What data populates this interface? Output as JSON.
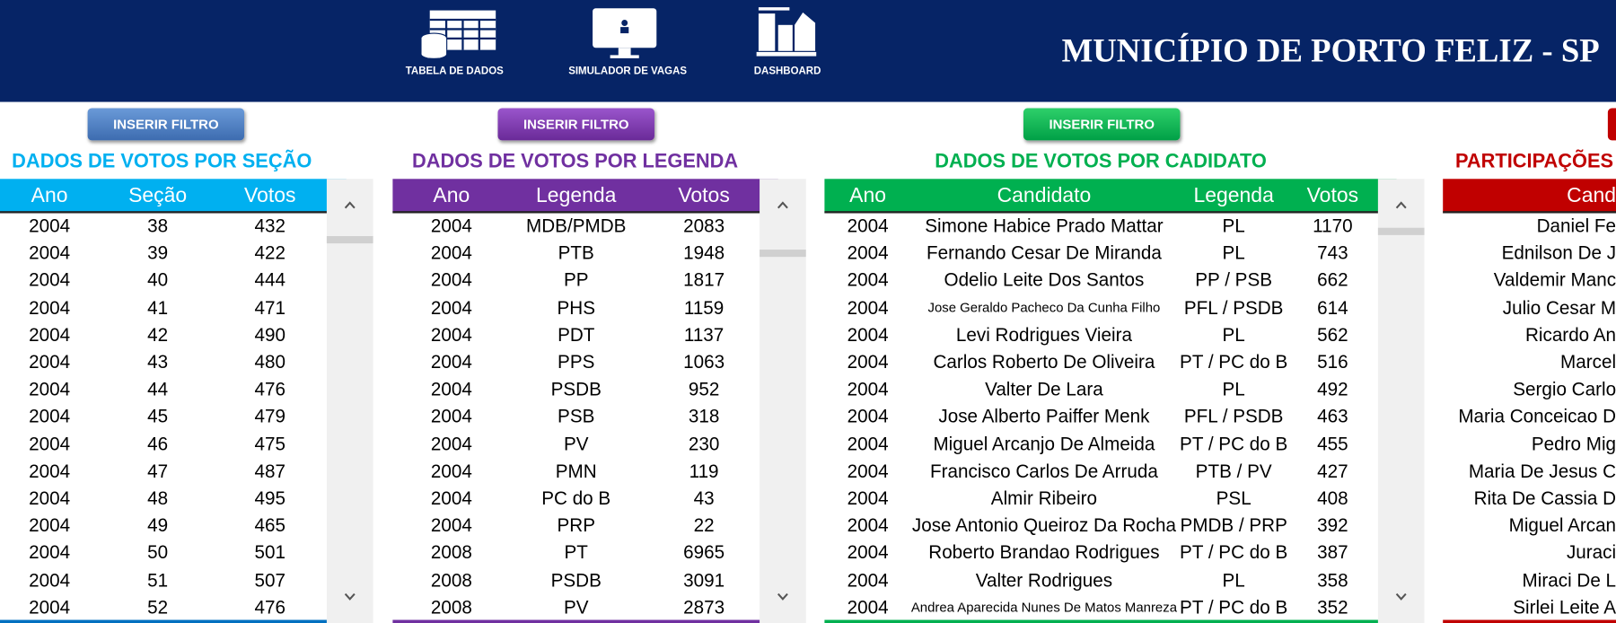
{
  "header": {
    "title": "MUNICÍPIO DE PORTO FELIZ - SP",
    "nav": [
      "TABELA DE DADOS",
      "SIMULADOR DE VAGAS",
      "DASHBOARD"
    ]
  },
  "panels": [
    {
      "button": "INSERIR FILTRO",
      "title": "DADOS DE VOTOS POR SEÇÃO",
      "columns": [
        "Ano",
        "Seção",
        "Votos"
      ],
      "rows": [
        [
          2004,
          38,
          432
        ],
        [
          2004,
          39,
          422
        ],
        [
          2004,
          40,
          444
        ],
        [
          2004,
          41,
          471
        ],
        [
          2004,
          42,
          490
        ],
        [
          2004,
          43,
          480
        ],
        [
          2004,
          44,
          476
        ],
        [
          2004,
          45,
          479
        ],
        [
          2004,
          46,
          475
        ],
        [
          2004,
          47,
          487
        ],
        [
          2004,
          48,
          495
        ],
        [
          2004,
          49,
          465
        ],
        [
          2004,
          50,
          501
        ],
        [
          2004,
          51,
          507
        ],
        [
          2004,
          52,
          476
        ]
      ]
    },
    {
      "button": "INSERIR FILTRO",
      "title": "DADOS DE VOTOS POR LEGENDA",
      "columns": [
        "Ano",
        "Legenda",
        "Votos"
      ],
      "rows": [
        [
          2004,
          "MDB/PMDB",
          2083
        ],
        [
          2004,
          "PTB",
          1948
        ],
        [
          2004,
          "PP",
          1817
        ],
        [
          2004,
          "PHS",
          1159
        ],
        [
          2004,
          "PDT",
          1137
        ],
        [
          2004,
          "PPS",
          1063
        ],
        [
          2004,
          "PSDB",
          952
        ],
        [
          2004,
          "PSB",
          318
        ],
        [
          2004,
          "PV",
          230
        ],
        [
          2004,
          "PMN",
          119
        ],
        [
          2004,
          "PC do B",
          43
        ],
        [
          2004,
          "PRP",
          22
        ],
        [
          2008,
          "PT",
          6965
        ],
        [
          2008,
          "PSDB",
          3091
        ],
        [
          2008,
          "PV",
          2873
        ]
      ]
    },
    {
      "button": "INSERIR FILTRO",
      "title": "DADOS DE VOTOS POR CADIDATO",
      "columns": [
        "Ano",
        "Candidato",
        "Legenda",
        "Votos"
      ],
      "rows": [
        [
          2004,
          "Simone Habice Prado Mattar",
          "PL",
          1170
        ],
        [
          2004,
          "Fernando Cesar De Miranda",
          "PL",
          743
        ],
        [
          2004,
          "Odelio Leite Dos Santos",
          "PP / PSB",
          662
        ],
        [
          2004,
          "Jose Geraldo Pacheco Da Cunha Filho",
          "PFL / PSDB",
          614
        ],
        [
          2004,
          "Levi Rodrigues Vieira",
          "PL",
          562
        ],
        [
          2004,
          "Carlos Roberto De Oliveira",
          "PT / PC do B",
          516
        ],
        [
          2004,
          "Valter De Lara",
          "PL",
          492
        ],
        [
          2004,
          "Jose Alberto Paiffer Menk",
          "PFL / PSDB",
          463
        ],
        [
          2004,
          "Miguel Arcanjo De Almeida",
          "PT / PC do B",
          455
        ],
        [
          2004,
          "Francisco Carlos De Arruda",
          "PTB / PV",
          427
        ],
        [
          2004,
          "Almir Ribeiro",
          "PSL",
          408
        ],
        [
          2004,
          "Jose Antonio Queiroz Da Rocha",
          "PMDB / PRP",
          392
        ],
        [
          2004,
          "Roberto Brandao Rodrigues",
          "PT / PC do B",
          387
        ],
        [
          2004,
          "Valter Rodrigues",
          "PL",
          358
        ],
        [
          2004,
          "Andrea Aparecida Nunes De Matos Manreza",
          "PT / PC do B",
          352
        ]
      ]
    },
    {
      "title": "PARTICIPAÇÕES",
      "columns": [
        "Cand"
      ],
      "rows": [
        [
          "Daniel Fe"
        ],
        [
          "Ednilson De J"
        ],
        [
          "Valdemir Manc"
        ],
        [
          "Julio Cesar M"
        ],
        [
          "Ricardo An"
        ],
        [
          "Marcel"
        ],
        [
          "Sergio Carlo"
        ],
        [
          "Maria Conceicao D"
        ],
        [
          "Pedro Mig"
        ],
        [
          "Maria De Jesus C"
        ],
        [
          "Rita De Cassia D"
        ],
        [
          "Miguel Arcan"
        ],
        [
          "Juraci"
        ],
        [
          "Miraci De L"
        ],
        [
          "Sirlei Leite A"
        ]
      ]
    }
  ]
}
